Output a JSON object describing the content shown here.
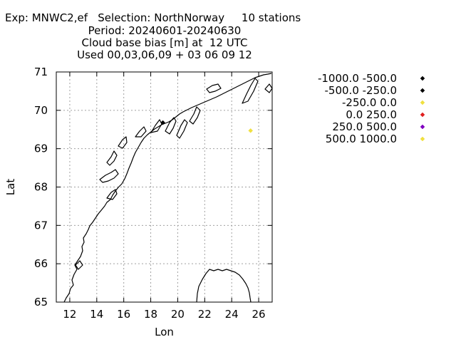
{
  "chart_data": {
    "type": "scatter",
    "title_lines": [
      "Exp: MNWC2,ef   Selection: NorthNorway     10 stations",
      "Period: 20240601-20240630",
      "Cloud base bias [m] at  12 UTC",
      "Used 00,03,06,09 + 03 06 09 12"
    ],
    "xlabel": "Lon",
    "ylabel": "Lat",
    "xlim": [
      11,
      27
    ],
    "ylim": [
      65,
      71
    ],
    "xticks": [
      12,
      14,
      16,
      18,
      20,
      22,
      24,
      26
    ],
    "yticks": [
      65,
      66,
      67,
      68,
      69,
      70,
      71
    ],
    "grid": true,
    "legend_position": "right",
    "series": [
      {
        "name": "-1000.0 -500.0",
        "color": "#000000",
        "points": []
      },
      {
        "name": "-500.0 -250.0",
        "color": "#000000",
        "points": [
          [
            18.9,
            69.68
          ]
        ]
      },
      {
        "name": "-250.0 0.0",
        "color": "#f0e040",
        "points": [
          [
            25.4,
            69.47
          ]
        ]
      },
      {
        "name": "0.0 250.0",
        "color": "#e02020",
        "points": []
      },
      {
        "name": "250.0 500.0",
        "color": "#8000c0",
        "points": []
      },
      {
        "name": "500.0 1000.0",
        "color": "#f0e040",
        "points": []
      }
    ]
  }
}
